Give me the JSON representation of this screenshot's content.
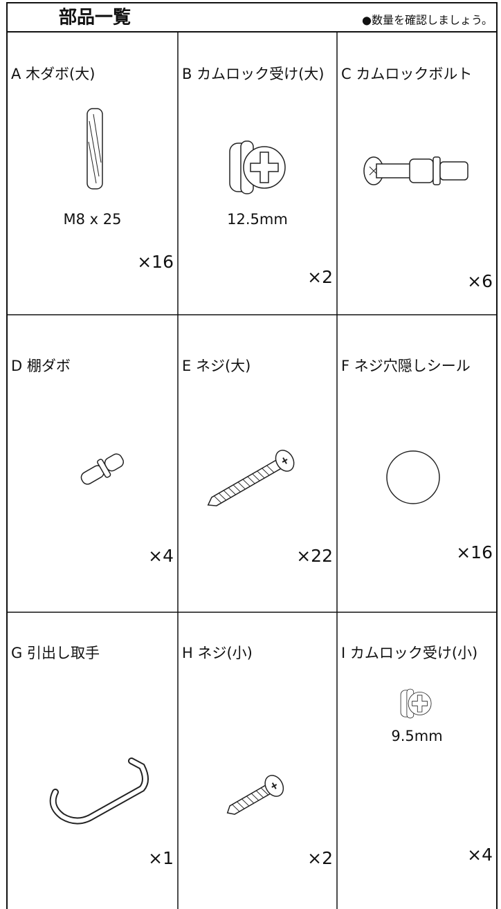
{
  "header": {
    "title": "部品一覧",
    "note": "●数量を確認しましょう。"
  },
  "parts": [
    {
      "label": "A 木ダボ(大)",
      "size": "M8 x 25",
      "quantity": "×16"
    },
    {
      "label": "B カムロック受け(大)",
      "size": "12.5mm",
      "quantity": "×2"
    },
    {
      "label": "C カムロックボルト",
      "quantity": "×6"
    },
    {
      "label": "D 棚ダボ",
      "quantity": "×4"
    },
    {
      "label": "E ネジ(大)",
      "quantity": "×22"
    },
    {
      "label": "F ネジ穴隠しシール",
      "quantity": "×16"
    },
    {
      "label": "G 引出し取手",
      "quantity": "×1"
    },
    {
      "label": "H ネジ(小)",
      "quantity": "×2"
    },
    {
      "label": "I カムロック受け(小)",
      "size": "9.5mm",
      "quantity": "×4"
    }
  ]
}
